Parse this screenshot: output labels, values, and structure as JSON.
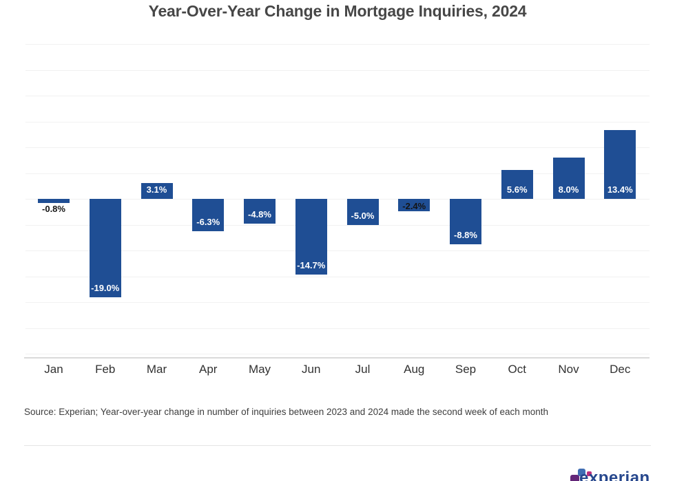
{
  "chart_data": {
    "type": "bar",
    "title": "Year-Over-Year Change in Mortgage Inquiries, 2024",
    "categories": [
      "Jan",
      "Feb",
      "Mar",
      "Apr",
      "May",
      "Jun",
      "Jul",
      "Aug",
      "Sep",
      "Oct",
      "Nov",
      "Dec"
    ],
    "values": [
      -0.8,
      -19.0,
      3.1,
      -6.3,
      -4.8,
      -14.7,
      -5.0,
      -2.4,
      -8.8,
      5.6,
      8.0,
      13.4
    ],
    "data_labels": [
      "-0.8%",
      "-19.0%",
      "3.1%",
      "-6.3%",
      "-4.8%",
      "-14.7%",
      "-5.0%",
      "-2.4%",
      "-8.8%",
      "5.6%",
      "8.0%",
      "13.4%"
    ],
    "xlabel": "",
    "ylabel": "",
    "ylim": [
      -30.8,
      30.8
    ],
    "gridline_step": 5,
    "grid": "horizontal-only",
    "legend": "none",
    "bar_color": "#1f4e94",
    "label_color_inside": "#ffffff",
    "label_color_outside": "#141414",
    "axis_line_color": "#dadada",
    "gridline_color": "#f1f1f1"
  },
  "source": {
    "text": "Source: Experian; Year-over-year change in number of inquiries between 2023 and 2024 made the second week of each month"
  },
  "logo": {
    "brand": "experian",
    "text_color": "#26478D",
    "square_purple": "#632678",
    "square_blue": "#406EB3",
    "square_pink": "#BA2F7D"
  }
}
